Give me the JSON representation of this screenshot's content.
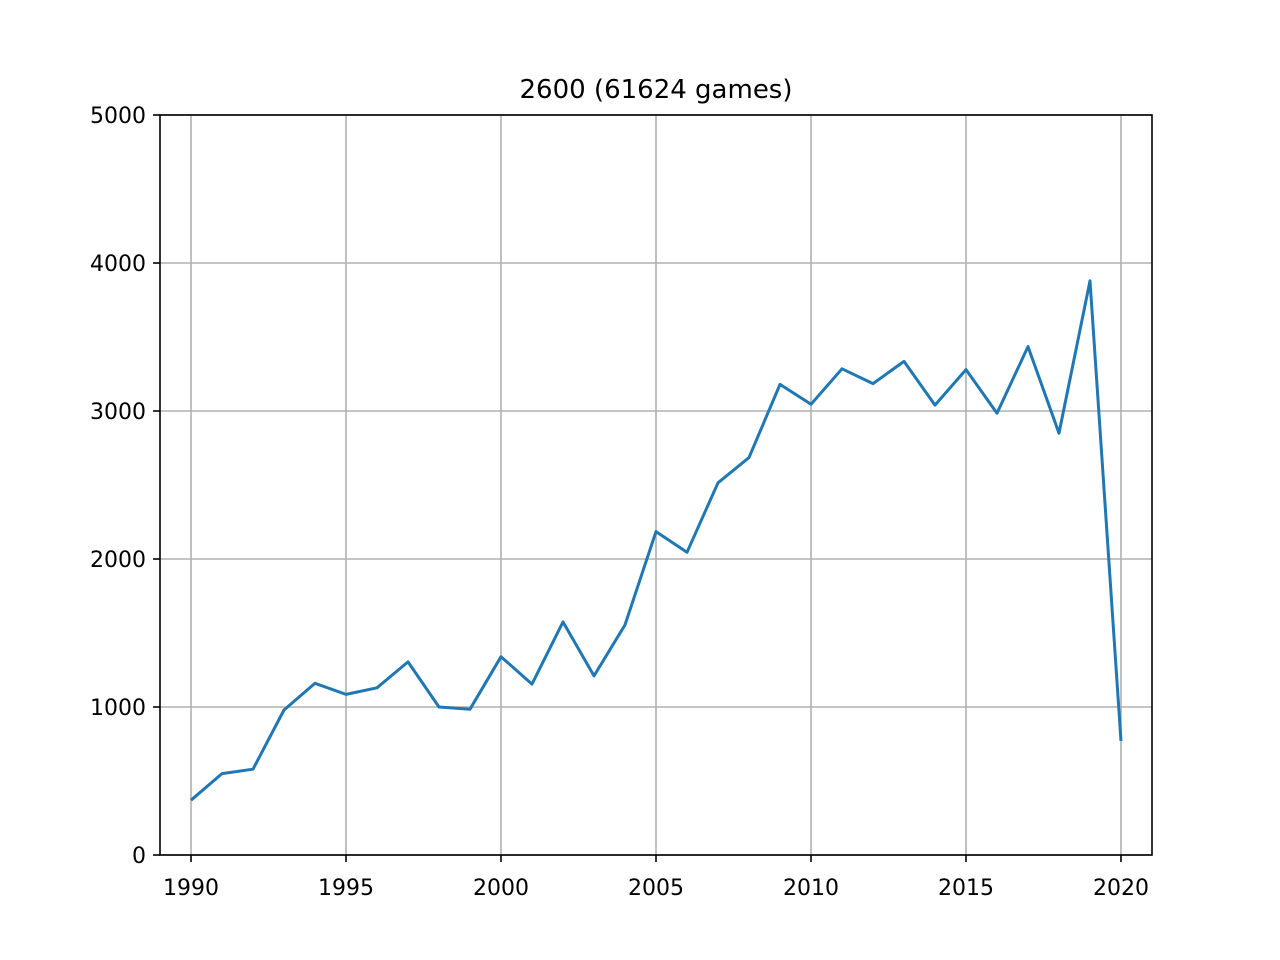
{
  "chart_data": {
    "type": "line",
    "title": "2600 (61624 games)",
    "xlabel": "",
    "ylabel": "",
    "xlim": [
      1989,
      2021
    ],
    "ylim": [
      0,
      5000
    ],
    "xticks": [
      1990,
      1995,
      2000,
      2005,
      2010,
      2015,
      2020
    ],
    "yticks": [
      0,
      1000,
      2000,
      3000,
      4000,
      5000
    ],
    "grid": true,
    "series": [
      {
        "color": "#1f77b4",
        "x": [
          1990,
          1991,
          1992,
          1993,
          1994,
          1995,
          1996,
          1997,
          1998,
          1999,
          2000,
          2001,
          2002,
          2003,
          2004,
          2005,
          2006,
          2007,
          2008,
          2009,
          2010,
          2011,
          2012,
          2013,
          2014,
          2015,
          2016,
          2017,
          2018,
          2019,
          2020
        ],
        "y": [
          370,
          550,
          580,
          980,
          1160,
          1085,
          1130,
          1305,
          1000,
          985,
          1340,
          1155,
          1575,
          1210,
          1555,
          2185,
          2045,
          2515,
          2685,
          3180,
          3045,
          3285,
          3185,
          3335,
          3040,
          3280,
          2985,
          3435,
          2850,
          3880,
          770
        ]
      }
    ]
  }
}
